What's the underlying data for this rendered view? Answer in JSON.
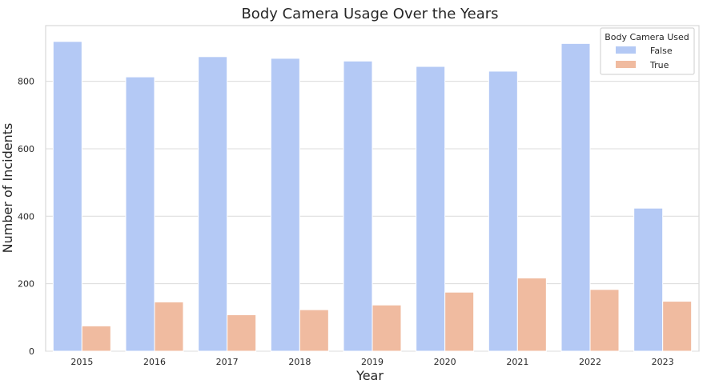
{
  "chart_data": {
    "type": "bar",
    "title": "Body Camera Usage Over the Years",
    "xlabel": "Year",
    "ylabel": "Number of Incidents",
    "categories": [
      "2015",
      "2016",
      "2017",
      "2018",
      "2019",
      "2020",
      "2021",
      "2022",
      "2023"
    ],
    "series": [
      {
        "name": "False",
        "color": "#b4c9f5",
        "values": [
          918,
          813,
          873,
          868,
          860,
          844,
          830,
          912,
          424
        ]
      },
      {
        "name": "True",
        "color": "#f0bba0",
        "values": [
          75,
          146,
          108,
          123,
          137,
          175,
          217,
          183,
          148
        ]
      }
    ],
    "ylim": [
      0,
      965
    ],
    "yticks": [
      0,
      200,
      400,
      600,
      800
    ],
    "grid": true,
    "legend": {
      "title": "Body Camera Used",
      "placement": "top-right"
    }
  }
}
